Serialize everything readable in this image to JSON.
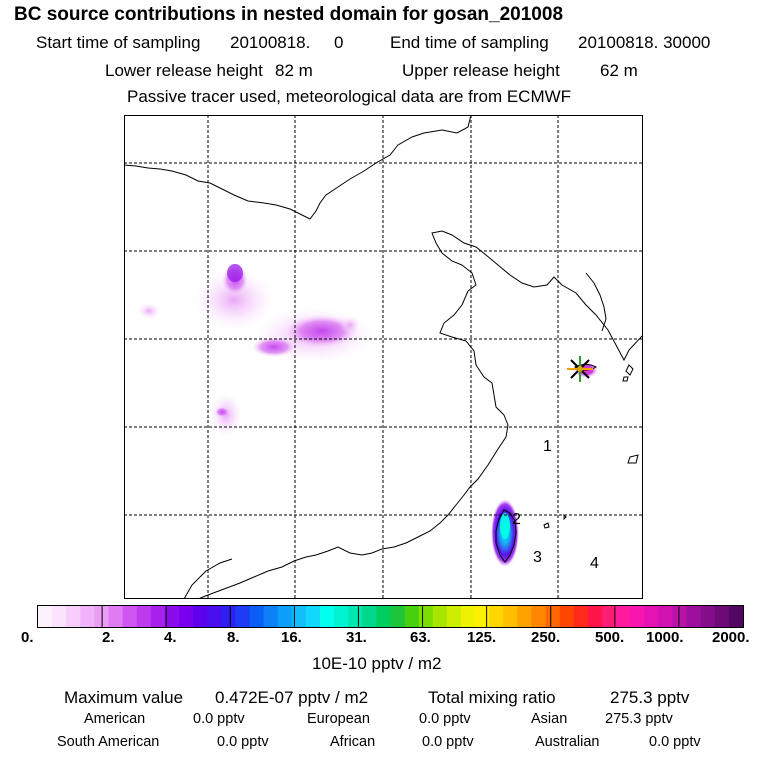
{
  "header": {
    "title": "BC  source contributions in nested domain for gosan_201008",
    "start_label": "Start time of sampling",
    "start_value": "20100818.     0",
    "end_label": "End time of sampling",
    "end_value": "20100818. 30000",
    "lower_label": "Lower release height",
    "lower_value": "82 m",
    "upper_label": "Upper release height",
    "upper_value": "62 m",
    "tracer_note": "Passive tracer used, meteorological data are from ECMWF"
  },
  "map": {
    "region_labels": [
      "1",
      "2",
      "3",
      "4"
    ],
    "receptor_name": "gosan"
  },
  "colorbar": {
    "tick_labels": [
      "0.",
      "2.",
      "4.",
      "8.",
      "16.",
      "31.",
      "63.",
      "125.",
      "250.",
      "500.",
      "1000.",
      "2000."
    ],
    "unit": "10E-10 pptv / m2",
    "colors": [
      "#fdf2fe",
      "#fbe2fd",
      "#f7cdfb",
      "#f1b3f9",
      "#eb9df6",
      "#e07cf3",
      "#cf56f0",
      "#bd3aee",
      "#a522ec",
      "#8a0cea",
      "#7a00f0",
      "#5c00ee",
      "#4a0fee",
      "#3020f0",
      "#1e3cf3",
      "#0a5df5",
      "#0b80f7",
      "#0a9ff9",
      "#12bffb",
      "#12d8fc",
      "#00ffee",
      "#00f2d0",
      "#00e6b0",
      "#00d98c",
      "#00cf60",
      "#1ec43a",
      "#45d010",
      "#7ade00",
      "#a8e600",
      "#cdee00",
      "#ecf200",
      "#fff000",
      "#ffd700",
      "#ffbe00",
      "#ffa200",
      "#ff8600",
      "#ff6800",
      "#ff4600",
      "#ff2a1a",
      "#ff1547",
      "#ff1d77",
      "#ff1aa0",
      "#f716b0",
      "#e513b2",
      "#cf12b0",
      "#b812a8",
      "#9d0f9c",
      "#840d8c",
      "#6c0a78",
      "#540762"
    ]
  },
  "footer": {
    "max_label": "Maximum value",
    "max_value": "0.472E-07 pptv / m2",
    "total_label": "Total mixing ratio",
    "total_value": "275.3 pptv",
    "american_label": "American",
    "american_value": "0.0 pptv",
    "european_label": "European",
    "european_value": "0.0 pptv",
    "asian_label": "Asian",
    "asian_value": "275.3 pptv",
    "south_american_label": "South American",
    "south_american_value": "0.0 pptv",
    "african_label": "African",
    "african_value": "0.0 pptv",
    "australian_label": "Australian",
    "australian_value": "0.0 pptv"
  }
}
